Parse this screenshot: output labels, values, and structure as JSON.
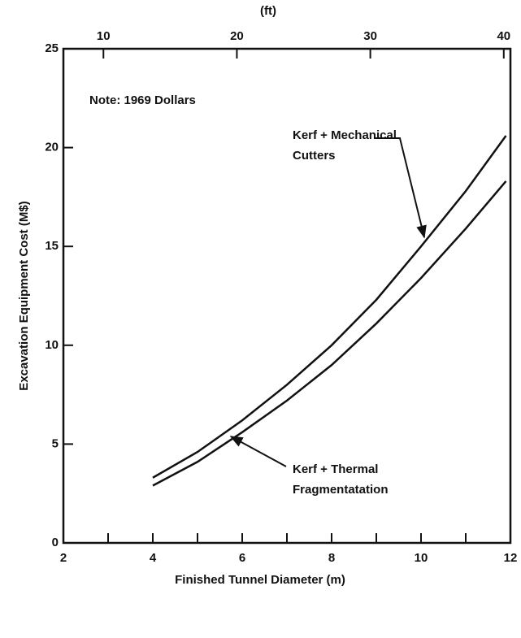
{
  "chart_data": {
    "type": "line",
    "xlabel": "Finished Tunnel Diameter (m)",
    "ylabel": "Excavation Equipment Cost (M$)",
    "x2label": "(ft)",
    "xlim": [
      2,
      12
    ],
    "xticks": [
      2,
      4,
      6,
      8,
      10,
      12
    ],
    "xminor": [
      3,
      5,
      7,
      9,
      11
    ],
    "x2lim": [
      7,
      40.5
    ],
    "x2ticks": [
      10,
      20,
      30,
      40
    ],
    "ylim": [
      0,
      25
    ],
    "yticks": [
      0,
      5,
      10,
      15,
      20,
      25
    ],
    "note": "Note: 1969 Dollars",
    "series": [
      {
        "color": "#111111",
        "x": [
          4,
          5,
          6,
          7,
          8,
          9,
          10,
          11,
          11.9
        ],
        "values": [
          3.3,
          4.6,
          6.2,
          8.0,
          10.0,
          12.3,
          15.0,
          17.8,
          20.6
        ]
      },
      {
        "color": "#111111",
        "x": [
          4,
          5,
          6,
          7,
          8,
          9,
          10,
          11,
          11.9
        ],
        "values": [
          2.9,
          4.1,
          5.6,
          7.2,
          9.0,
          11.1,
          13.4,
          15.9,
          18.3
        ]
      }
    ],
    "annotations": [
      {
        "lines": [
          "Kerf + Mechanical",
          "Cutters"
        ]
      },
      {
        "lines": [
          "Kerf + Thermal",
          "Fragmentatation"
        ]
      }
    ]
  }
}
